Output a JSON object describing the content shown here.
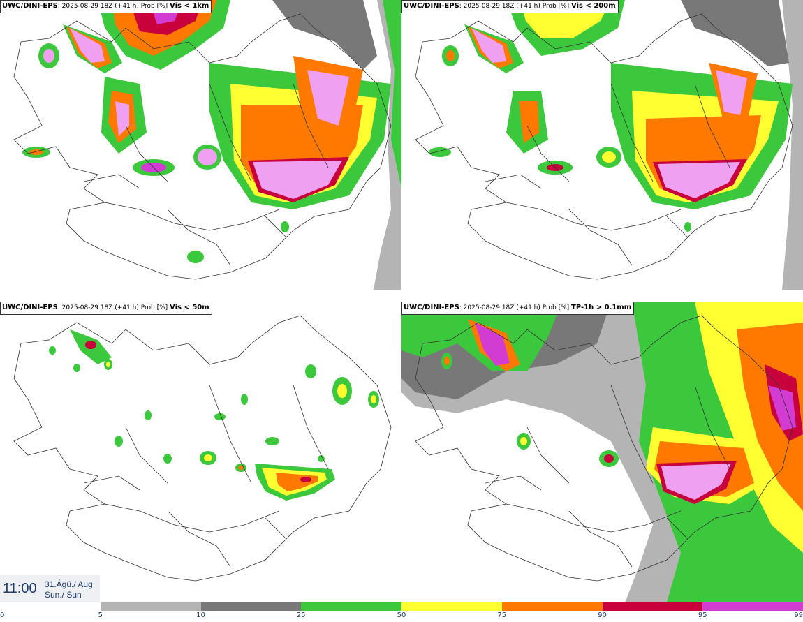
{
  "panels": [
    {
      "model": "UWC/DINI-EPS",
      "meta": ": 2025-08-29 18Z (+41 h) Prob [%] ",
      "variable": "Vis < 1km"
    },
    {
      "model": "UWC/DINI-EPS",
      "meta": ": 2025-08-29 18Z (+41 h) Prob [%] ",
      "variable": "Vis < 200m"
    },
    {
      "model": "UWC/DINI-EPS",
      "meta": ": 2025-08-29 18Z (+41 h) Prob [%] ",
      "variable": "Vis < 50m"
    },
    {
      "model": "UWC/DINI-EPS",
      "meta": ": 2025-08-29 18Z (+41 h) Prob [%] ",
      "variable": "TP-1h > 0.1mm"
    }
  ],
  "valid_time": {
    "time": "11:00",
    "date_line1": "31.Ágú./ Aug",
    "date_line2": "Sun./ Sun"
  },
  "legend": {
    "labels": [
      "0",
      "5",
      "10",
      "25",
      "50",
      "75",
      "90",
      "95",
      "99"
    ],
    "colors": [
      "#ffffff",
      "#b4b4b4",
      "#787878",
      "#3cc83c",
      "#ffff32",
      "#ff7800",
      "#c8003c",
      "#d23cd2",
      "#f0a0f0"
    ]
  },
  "colors": {
    "lavender": "#f0a0f0",
    "magenta": "#d23cd2",
    "crimson": "#c8003c",
    "orange": "#ff7800",
    "yellow": "#ffff32",
    "green": "#3cc83c",
    "dark_gray": "#787878",
    "light_gray": "#b4b4b4",
    "coast": "#333333",
    "text_blue": "#1e3c6e"
  }
}
